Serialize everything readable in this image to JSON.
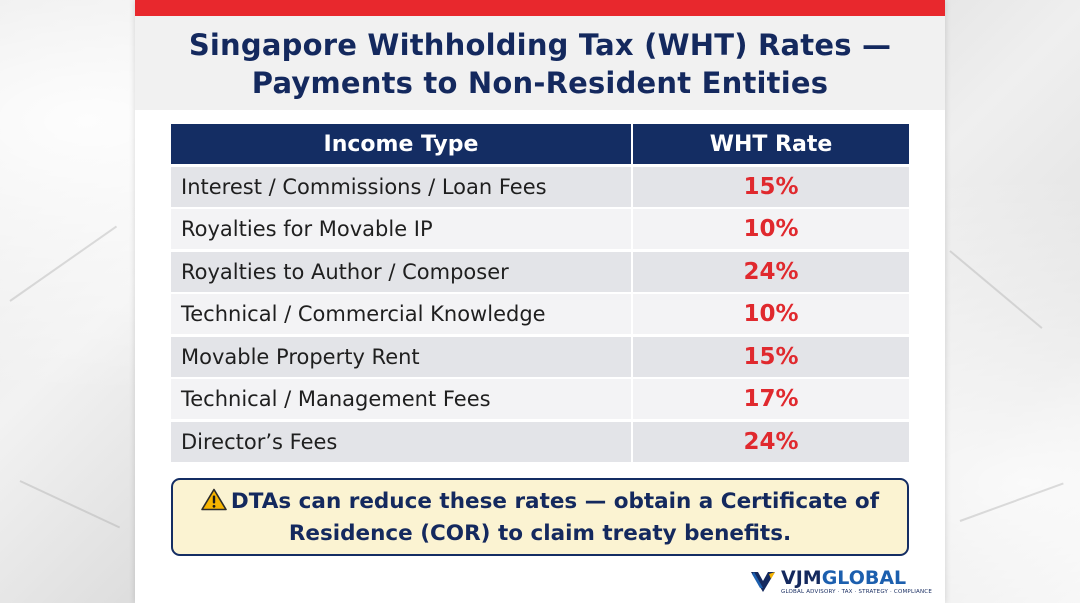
{
  "title": {
    "line1": "Singapore Withholding Tax (WHT) Rates —",
    "line2": "Payments to Non-Resident Entities"
  },
  "table": {
    "headers": [
      "Income Type",
      "WHT Rate"
    ],
    "rows": [
      {
        "income_type": "Interest / Commissions / Loan Fees",
        "rate": "15%"
      },
      {
        "income_type": "Royalties for Movable IP",
        "rate": "10%"
      },
      {
        "income_type": "Royalties to Author / Composer",
        "rate": "24%"
      },
      {
        "income_type": "Technical / Commercial Knowledge",
        "rate": "10%"
      },
      {
        "income_type": "Movable Property Rent",
        "rate": "15%"
      },
      {
        "income_type": "Technical / Management Fees",
        "rate": "17%"
      },
      {
        "income_type": "Director’s Fees",
        "rate": "24%"
      }
    ]
  },
  "note": {
    "icon": "warning-icon",
    "line1": "DTAs can reduce these rates — obtain a Certificate of",
    "line2": "Residence (COR) to claim treaty benefits."
  },
  "logo": {
    "brand_a": "VJM",
    "brand_b": "GLOBAL",
    "tagline": "GLOBAL ADVISORY · TAX · STRATEGY · COMPLIANCE"
  },
  "colors": {
    "accent_red": "#e8282d",
    "navy": "#142d63",
    "rate_red": "#e0292e",
    "note_bg": "#fbf3d2"
  }
}
